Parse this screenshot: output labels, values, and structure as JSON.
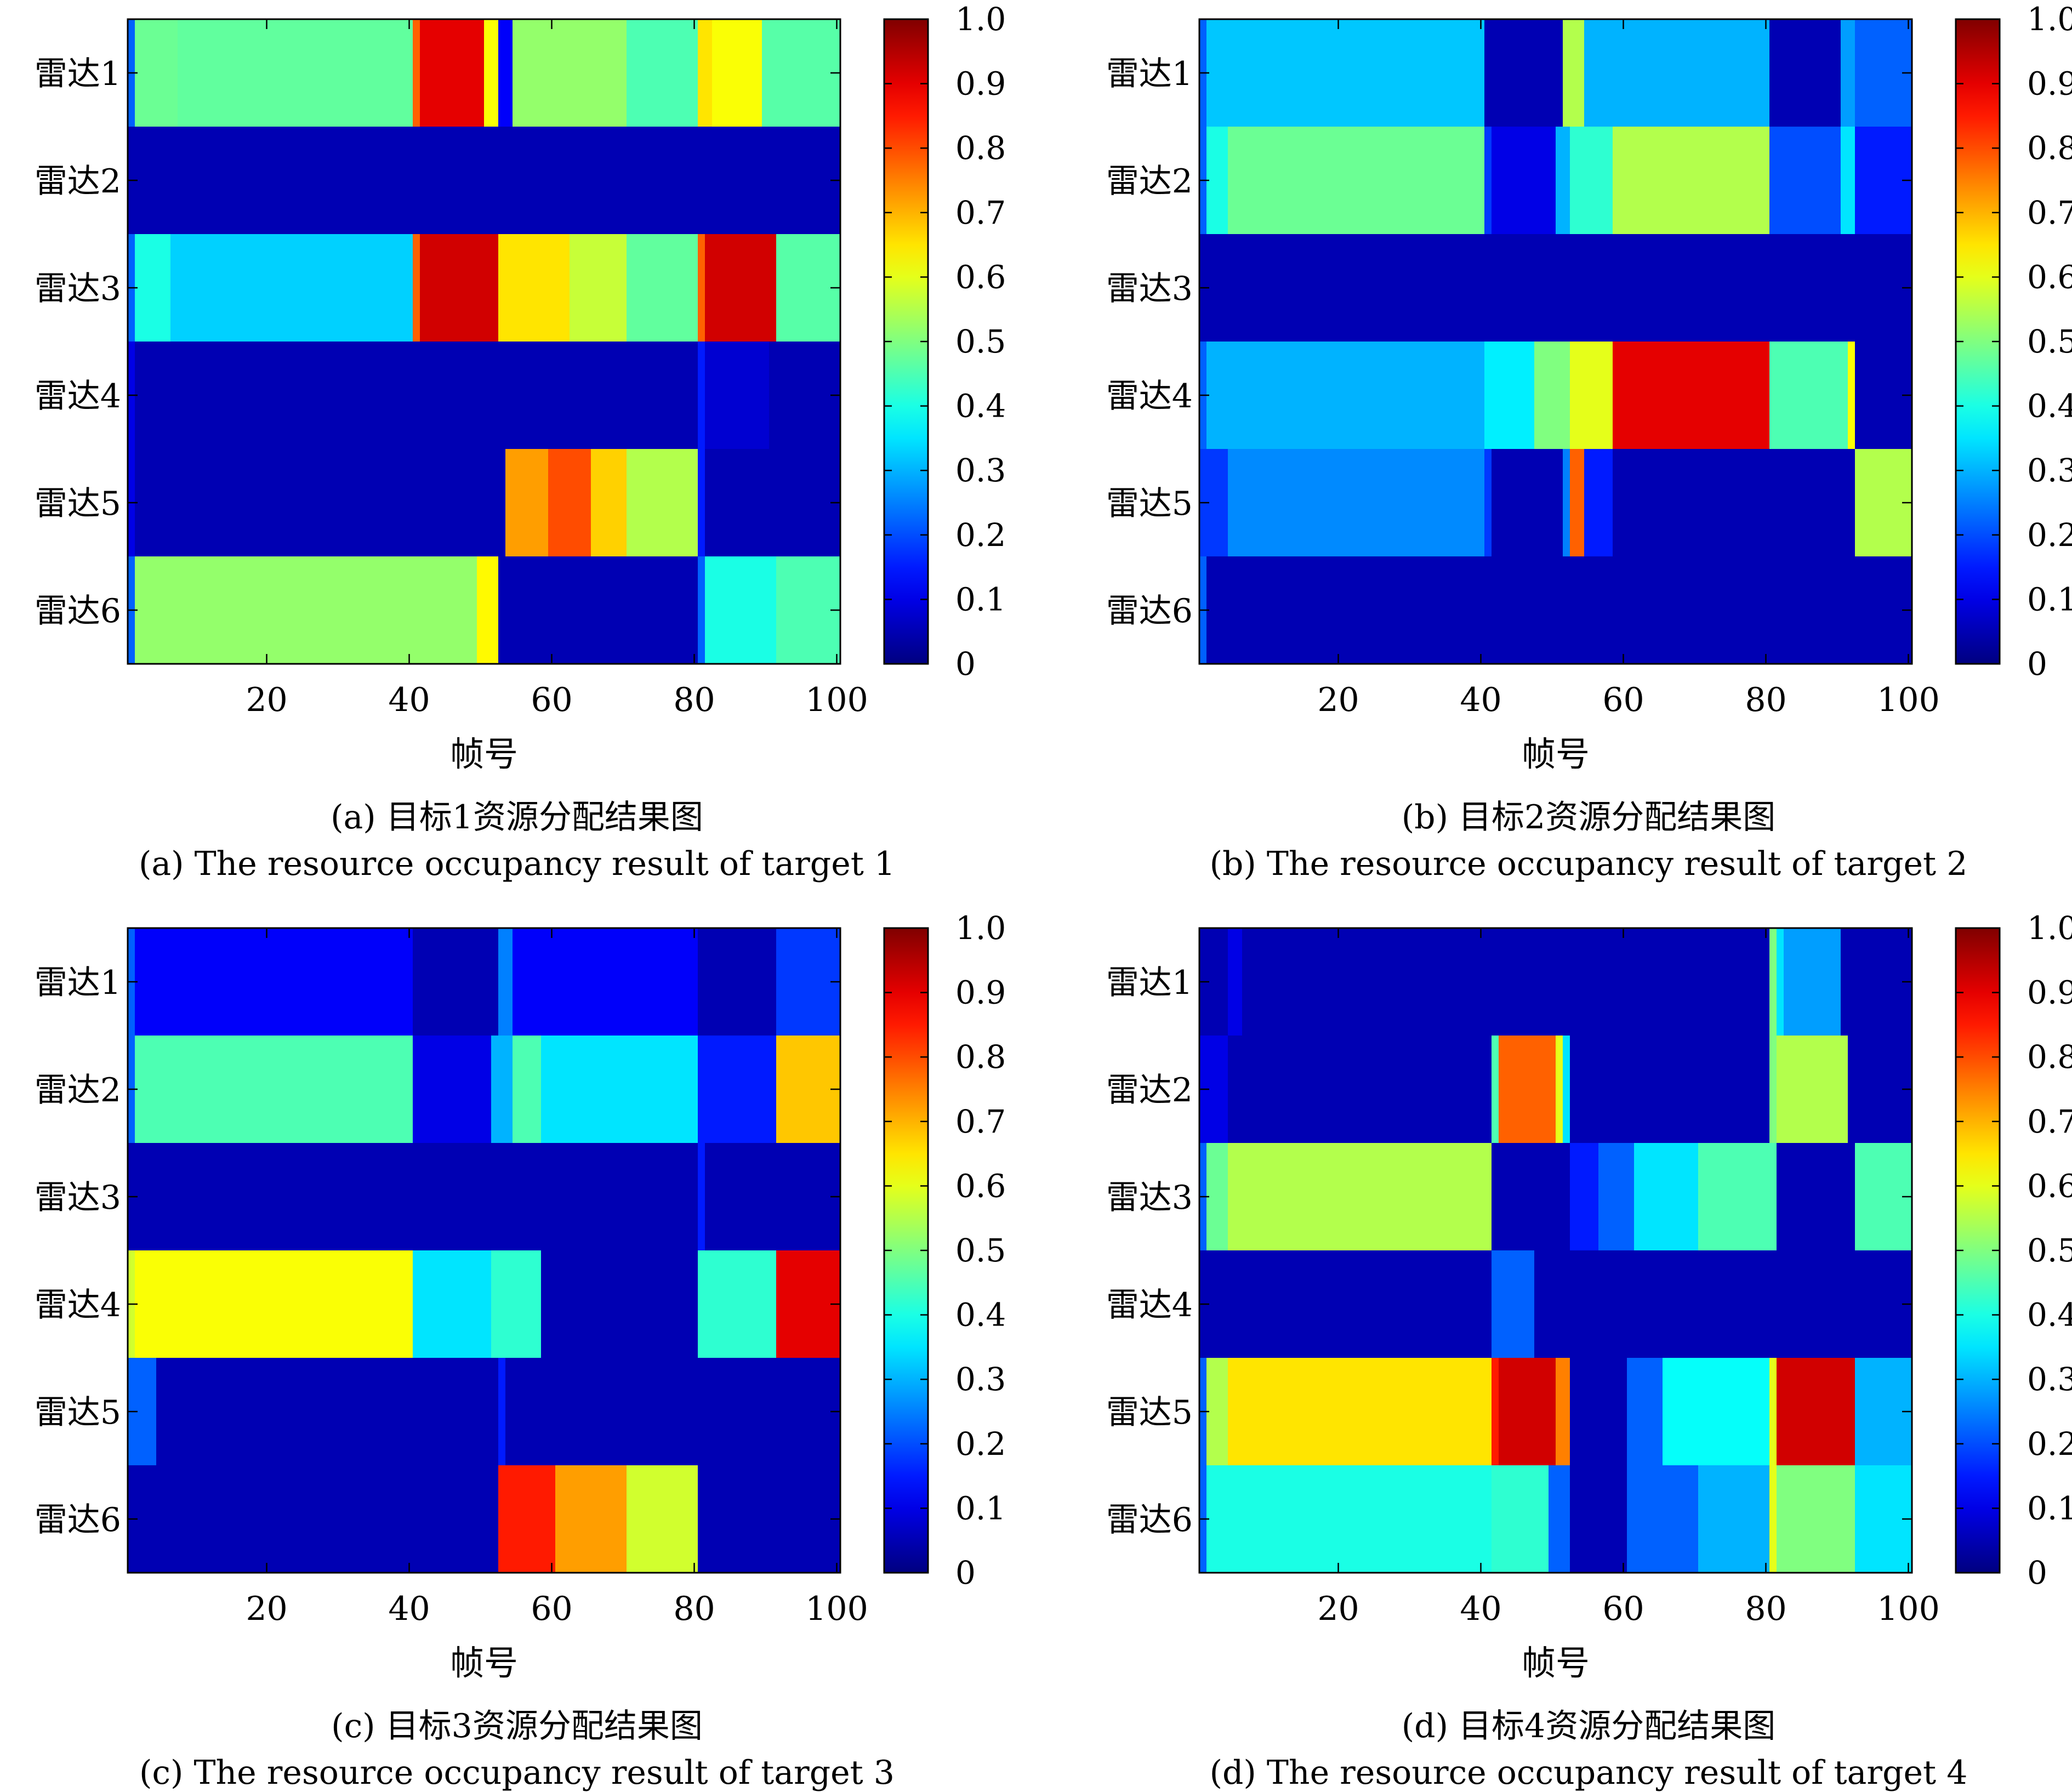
{
  "chart_data": [
    {
      "type": "heatmap",
      "id": "a",
      "caption_cn": "(a) 目标1资源分配结果图",
      "caption_en": "(a) The resource occupancy result of target 1",
      "xlabel": "帧号",
      "ylabel": "",
      "xlim": [
        0.5,
        100.5
      ],
      "xticks": [
        20,
        40,
        60,
        80,
        100
      ],
      "rows": [
        "雷达1",
        "雷达2",
        "雷达3",
        "雷达4",
        "雷达5",
        "雷达6"
      ],
      "clim": [
        0,
        1
      ],
      "colorbar_ticks": [
        "0",
        "0.1",
        "0.2",
        "0.3",
        "0.4",
        "0.5",
        "0.6",
        "0.7",
        "0.8",
        "0.9",
        "1.0"
      ],
      "segments": [
        [
          [
            1,
            1,
            0.22
          ],
          [
            2,
            7,
            0.48
          ],
          [
            8,
            40,
            0.47
          ],
          [
            41,
            41,
            0.78
          ],
          [
            42,
            50,
            0.9
          ],
          [
            51,
            52,
            0.62
          ],
          [
            53,
            54,
            0.12
          ],
          [
            55,
            70,
            0.52
          ],
          [
            71,
            80,
            0.45
          ],
          [
            81,
            82,
            0.65
          ],
          [
            83,
            89,
            0.62
          ],
          [
            90,
            100,
            0.46
          ]
        ],
        [
          [
            1,
            100,
            0.05
          ]
        ],
        [
          [
            1,
            1,
            0.22
          ],
          [
            2,
            6,
            0.4
          ],
          [
            7,
            40,
            0.33
          ],
          [
            41,
            41,
            0.78
          ],
          [
            42,
            52,
            0.92
          ],
          [
            53,
            62,
            0.65
          ],
          [
            63,
            70,
            0.57
          ],
          [
            71,
            80,
            0.47
          ],
          [
            81,
            81,
            0.78
          ],
          [
            82,
            91,
            0.92
          ],
          [
            92,
            100,
            0.46
          ]
        ],
        [
          [
            1,
            1,
            0.1
          ],
          [
            2,
            80,
            0.05
          ],
          [
            81,
            81,
            0.15
          ],
          [
            82,
            90,
            0.08
          ],
          [
            91,
            100,
            0.05
          ]
        ],
        [
          [
            1,
            1,
            0.1
          ],
          [
            2,
            53,
            0.05
          ],
          [
            54,
            59,
            0.72
          ],
          [
            60,
            65,
            0.8
          ],
          [
            66,
            70,
            0.67
          ],
          [
            71,
            80,
            0.55
          ],
          [
            81,
            81,
            0.15
          ],
          [
            82,
            100,
            0.05
          ]
        ],
        [
          [
            1,
            1,
            0.22
          ],
          [
            2,
            49,
            0.52
          ],
          [
            50,
            52,
            0.63
          ],
          [
            53,
            80,
            0.05
          ],
          [
            81,
            81,
            0.22
          ],
          [
            82,
            91,
            0.4
          ],
          [
            92,
            100,
            0.45
          ]
        ]
      ]
    },
    {
      "type": "heatmap",
      "id": "b",
      "caption_cn": "(b) 目标2资源分配结果图",
      "caption_en": "(b) The resource occupancy result of target 2",
      "xlabel": "帧号",
      "ylabel": "",
      "xlim": [
        0.5,
        100.5
      ],
      "xticks": [
        20,
        40,
        60,
        80,
        100
      ],
      "rows": [
        "雷达1",
        "雷达2",
        "雷达3",
        "雷达4",
        "雷达5",
        "雷达6"
      ],
      "clim": [
        0,
        1
      ],
      "colorbar_ticks": [
        "0",
        "0.1",
        "0.2",
        "0.3",
        "0.4",
        "0.5",
        "0.6",
        "0.7",
        "0.8",
        "0.9",
        "1.0"
      ],
      "segments": [
        [
          [
            1,
            1,
            0.22
          ],
          [
            2,
            40,
            0.32
          ],
          [
            41,
            51,
            0.05
          ],
          [
            52,
            54,
            0.55
          ],
          [
            55,
            80,
            0.3
          ],
          [
            81,
            90,
            0.05
          ],
          [
            91,
            92,
            0.28
          ],
          [
            93,
            100,
            0.22
          ]
        ],
        [
          [
            1,
            1,
            0.22
          ],
          [
            2,
            4,
            0.4
          ],
          [
            5,
            40,
            0.48
          ],
          [
            41,
            41,
            0.18
          ],
          [
            42,
            50,
            0.1
          ],
          [
            51,
            52,
            0.3
          ],
          [
            53,
            58,
            0.42
          ],
          [
            59,
            80,
            0.55
          ],
          [
            81,
            90,
            0.2
          ],
          [
            91,
            92,
            0.35
          ],
          [
            93,
            100,
            0.15
          ]
        ],
        [
          [
            1,
            100,
            0.05
          ]
        ],
        [
          [
            1,
            1,
            0.22
          ],
          [
            2,
            40,
            0.3
          ],
          [
            41,
            47,
            0.36
          ],
          [
            48,
            52,
            0.5
          ],
          [
            53,
            58,
            0.6
          ],
          [
            59,
            80,
            0.9
          ],
          [
            81,
            91,
            0.45
          ],
          [
            92,
            92,
            0.62
          ],
          [
            93,
            100,
            0.05
          ]
        ],
        [
          [
            1,
            4,
            0.18
          ],
          [
            5,
            40,
            0.26
          ],
          [
            41,
            41,
            0.18
          ],
          [
            42,
            51,
            0.05
          ],
          [
            52,
            52,
            0.25
          ],
          [
            53,
            54,
            0.78
          ],
          [
            55,
            58,
            0.15
          ],
          [
            59,
            92,
            0.05
          ],
          [
            93,
            100,
            0.55
          ]
        ],
        [
          [
            1,
            1,
            0.22
          ],
          [
            2,
            100,
            0.05
          ]
        ]
      ]
    },
    {
      "type": "heatmap",
      "id": "c",
      "caption_cn": "(c) 目标3资源分配结果图",
      "caption_en": "(c) The resource occupancy result of target 3",
      "xlabel": "帧号",
      "ylabel": "",
      "xlim": [
        0.5,
        100.5
      ],
      "xticks": [
        20,
        40,
        60,
        80,
        100
      ],
      "rows": [
        "雷达1",
        "雷达2",
        "雷达3",
        "雷达4",
        "雷达5",
        "雷达6"
      ],
      "clim": [
        0,
        1
      ],
      "colorbar_ticks": [
        "0",
        "0.1",
        "0.2",
        "0.3",
        "0.4",
        "0.5",
        "0.6",
        "0.7",
        "0.8",
        "0.9",
        "1.0"
      ],
      "segments": [
        [
          [
            1,
            1,
            0.22
          ],
          [
            2,
            40,
            0.12
          ],
          [
            41,
            52,
            0.05
          ],
          [
            53,
            54,
            0.25
          ],
          [
            55,
            80,
            0.12
          ],
          [
            81,
            91,
            0.05
          ],
          [
            92,
            100,
            0.18
          ]
        ],
        [
          [
            1,
            1,
            0.22
          ],
          [
            2,
            40,
            0.45
          ],
          [
            41,
            51,
            0.1
          ],
          [
            52,
            54,
            0.3
          ],
          [
            55,
            58,
            0.45
          ],
          [
            59,
            80,
            0.35
          ],
          [
            81,
            91,
            0.15
          ],
          [
            92,
            100,
            0.68
          ]
        ],
        [
          [
            1,
            80,
            0.05
          ],
          [
            81,
            81,
            0.15
          ],
          [
            82,
            100,
            0.05
          ]
        ],
        [
          [
            1,
            1,
            0.58
          ],
          [
            2,
            40,
            0.62
          ],
          [
            41,
            51,
            0.35
          ],
          [
            52,
            58,
            0.42
          ],
          [
            59,
            80,
            0.05
          ],
          [
            81,
            91,
            0.42
          ],
          [
            92,
            100,
            0.9
          ]
        ],
        [
          [
            1,
            4,
            0.22
          ],
          [
            5,
            52,
            0.05
          ],
          [
            53,
            53,
            0.15
          ],
          [
            54,
            100,
            0.05
          ]
        ],
        [
          [
            1,
            52,
            0.05
          ],
          [
            53,
            60,
            0.85
          ],
          [
            61,
            70,
            0.72
          ],
          [
            71,
            80,
            0.58
          ],
          [
            81,
            100,
            0.05
          ]
        ]
      ]
    },
    {
      "type": "heatmap",
      "id": "d",
      "caption_cn": "(d) 目标4资源分配结果图",
      "caption_en": "(d) The resource occupancy result of target 4",
      "xlabel": "帧号",
      "ylabel": "",
      "xlim": [
        0.5,
        100.5
      ],
      "xticks": [
        20,
        40,
        60,
        80,
        100
      ],
      "rows": [
        "雷达1",
        "雷达2",
        "雷达3",
        "雷达4",
        "雷达5",
        "雷达6"
      ],
      "clim": [
        0,
        1
      ],
      "colorbar_ticks": [
        "0",
        "0.1",
        "0.2",
        "0.3",
        "0.4",
        "0.5",
        "0.6",
        "0.7",
        "0.8",
        "0.9",
        "1.0"
      ],
      "segments": [
        [
          [
            1,
            4,
            0.05
          ],
          [
            5,
            6,
            0.1
          ],
          [
            7,
            80,
            0.05
          ],
          [
            81,
            81,
            0.5
          ],
          [
            82,
            82,
            0.35
          ],
          [
            83,
            90,
            0.28
          ],
          [
            91,
            100,
            0.05
          ]
        ],
        [
          [
            1,
            4,
            0.1
          ],
          [
            5,
            41,
            0.05
          ],
          [
            42,
            42,
            0.45
          ],
          [
            43,
            50,
            0.78
          ],
          [
            51,
            51,
            0.6
          ],
          [
            52,
            52,
            0.35
          ],
          [
            53,
            80,
            0.05
          ],
          [
            81,
            81,
            0.5
          ],
          [
            82,
            91,
            0.55
          ],
          [
            92,
            100,
            0.05
          ]
        ],
        [
          [
            1,
            1,
            0.22
          ],
          [
            2,
            4,
            0.48
          ],
          [
            5,
            41,
            0.55
          ],
          [
            42,
            52,
            0.05
          ],
          [
            53,
            56,
            0.15
          ],
          [
            57,
            61,
            0.22
          ],
          [
            62,
            70,
            0.35
          ],
          [
            71,
            81,
            0.45
          ],
          [
            82,
            92,
            0.05
          ],
          [
            93,
            100,
            0.45
          ]
        ],
        [
          [
            1,
            41,
            0.05
          ],
          [
            42,
            47,
            0.22
          ],
          [
            48,
            100,
            0.05
          ]
        ],
        [
          [
            1,
            1,
            0.22
          ],
          [
            2,
            4,
            0.55
          ],
          [
            5,
            41,
            0.65
          ],
          [
            42,
            42,
            0.85
          ],
          [
            43,
            50,
            0.92
          ],
          [
            51,
            52,
            0.75
          ],
          [
            53,
            60,
            0.05
          ],
          [
            61,
            65,
            0.22
          ],
          [
            66,
            80,
            0.38
          ],
          [
            81,
            81,
            0.6
          ],
          [
            82,
            92,
            0.92
          ],
          [
            93,
            100,
            0.3
          ]
        ],
        [
          [
            1,
            1,
            0.22
          ],
          [
            2,
            41,
            0.4
          ],
          [
            42,
            49,
            0.42
          ],
          [
            50,
            52,
            0.22
          ],
          [
            53,
            60,
            0.05
          ],
          [
            61,
            70,
            0.22
          ],
          [
            71,
            80,
            0.3
          ],
          [
            81,
            81,
            0.6
          ],
          [
            82,
            92,
            0.5
          ],
          [
            93,
            100,
            0.35
          ]
        ]
      ]
    }
  ]
}
